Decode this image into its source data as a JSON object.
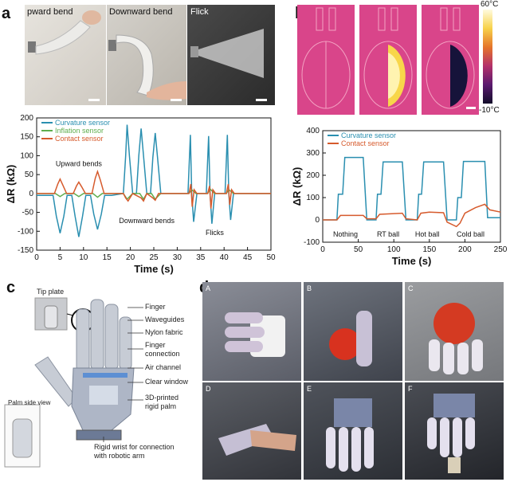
{
  "panel_a": {
    "letter": "a",
    "photos": [
      {
        "label": "Upward bend",
        "shown": "pward bend"
      },
      {
        "label": "Downward bend",
        "shown": "Downward bend"
      },
      {
        "label": "Flick",
        "shown": "Flick"
      }
    ]
  },
  "panel_b": {
    "letter": "b",
    "colorbar_max": "60°C",
    "colorbar_min": "-10°C"
  },
  "panel_c": {
    "letter": "c",
    "labels": {
      "tip_plate": "Tip plate",
      "finger": "Finger",
      "waveguides": "Waveguides",
      "nylon_fabric": "Nylon fabric",
      "finger_connection": "Finger\nconnection",
      "air_channel": "Air channel",
      "clear_window": "Clear window",
      "palm": "3D-printed\nrigid palm",
      "palm_side_view": "Palm side view",
      "wrist": "Rigid wrist for connection\nwith robotic arm"
    }
  },
  "panel_d": {
    "letter": "d",
    "tiles": [
      "A",
      "B",
      "C",
      "D",
      "E",
      "F"
    ]
  },
  "chart_data": [
    {
      "type": "line",
      "panel": "a",
      "xlabel": "Time (s)",
      "ylabel": "ΔR (kΩ)",
      "xlim": [
        0,
        50
      ],
      "ylim": [
        -150,
        200
      ],
      "xticks": [
        0,
        5,
        10,
        15,
        20,
        25,
        30,
        35,
        40,
        45,
        50
      ],
      "yticks": [
        -150,
        -100,
        -50,
        0,
        50,
        100,
        150,
        200
      ],
      "legend": "top-left",
      "annotations": [
        "Upward bends",
        "Downward bends",
        "Flicks"
      ],
      "series": [
        {
          "name": "Curvature sensor",
          "color": "#2a8fb0",
          "x": [
            0,
            3.5,
            4.2,
            5,
            5.8,
            6.5,
            7.5,
            8.2,
            9,
            9.8,
            10.5,
            11.5,
            12.2,
            13,
            13.8,
            14.5,
            16,
            18.5,
            19,
            19.3,
            19.8,
            20.5,
            21.3,
            21.8,
            22.3,
            22.8,
            23.5,
            24.3,
            24.8,
            25.3,
            25.8,
            26.5,
            30,
            32.3,
            32.8,
            33.1,
            33.5,
            34.2,
            36.2,
            36.7,
            37,
            37.4,
            38,
            40.2,
            40.7,
            41,
            41.4,
            42,
            45,
            50
          ],
          "y": [
            -5,
            -5,
            -60,
            -105,
            -60,
            -5,
            -5,
            -60,
            -115,
            -60,
            -5,
            -5,
            -55,
            -95,
            -55,
            -5,
            -5,
            0,
            100,
            182,
            100,
            0,
            0,
            100,
            172,
            100,
            0,
            0,
            95,
            160,
            95,
            0,
            0,
            0,
            155,
            0,
            -75,
            0,
            0,
            152,
            0,
            -80,
            0,
            0,
            155,
            0,
            -70,
            0,
            0,
            0
          ]
        },
        {
          "name": "Inflation sensor",
          "color": "#5fae4e",
          "x": [
            0,
            4,
            5,
            6,
            8,
            9,
            10,
            12,
            13,
            14,
            18.5,
            19.3,
            20.5,
            22,
            22.8,
            23.5,
            24.5,
            25.3,
            26.5,
            32.5,
            33.1,
            34,
            36.5,
            37,
            38,
            40.5,
            41,
            42,
            50
          ],
          "y": [
            0,
            0,
            -8,
            0,
            0,
            -8,
            0,
            0,
            -10,
            0,
            0,
            -15,
            0,
            0,
            -15,
            0,
            0,
            -15,
            0,
            0,
            10,
            0,
            0,
            12,
            0,
            0,
            10,
            0,
            0
          ]
        },
        {
          "name": "Contact sensor",
          "color": "#d65a2c",
          "x": [
            0,
            3.8,
            4.5,
            5,
            5.6,
            6.4,
            7.8,
            8.5,
            9,
            9.6,
            10.4,
            11.8,
            12.5,
            13,
            13.6,
            14.4,
            18.5,
            19,
            19.5,
            20.5,
            22.3,
            22.8,
            23.5,
            24.8,
            25.3,
            26,
            32.5,
            32.9,
            33.2,
            33.6,
            34.2,
            36.5,
            36.9,
            37.2,
            37.6,
            38.2,
            40.5,
            40.9,
            41.2,
            41.6,
            42.2,
            50
          ],
          "y": [
            0,
            0,
            25,
            38,
            22,
            0,
            0,
            20,
            30,
            18,
            0,
            0,
            40,
            58,
            35,
            0,
            0,
            -12,
            -20,
            0,
            -12,
            -20,
            0,
            -12,
            -18,
            0,
            0,
            25,
            -35,
            10,
            0,
            0,
            20,
            -40,
            10,
            0,
            0,
            25,
            -30,
            10,
            0,
            0
          ]
        }
      ]
    },
    {
      "type": "line",
      "panel": "b",
      "xlabel": "Time (s)",
      "ylabel": "ΔR (kΩ)",
      "xlim": [
        0,
        250
      ],
      "ylim": [
        -100,
        400
      ],
      "xticks": [
        0,
        50,
        100,
        150,
        200,
        250
      ],
      "yticks": [
        -100,
        0,
        100,
        200,
        300,
        400
      ],
      "legend": "top-left",
      "annotations": [
        "Nothing",
        "RT ball",
        "Hot ball",
        "Cold ball"
      ],
      "series": [
        {
          "name": "Curvature sensor",
          "color": "#2a8fb0",
          "x": [
            0,
            20,
            22,
            28,
            31,
            57,
            62,
            75,
            77,
            82,
            85,
            112,
            117,
            133,
            135,
            139,
            142,
            170,
            175,
            188,
            190,
            195,
            198,
            228,
            232,
            250
          ],
          "y": [
            0,
            0,
            115,
            115,
            280,
            280,
            0,
            0,
            115,
            115,
            260,
            260,
            0,
            0,
            115,
            115,
            260,
            260,
            0,
            0,
            100,
            100,
            262,
            262,
            10,
            10
          ]
        },
        {
          "name": "Contact sensor",
          "color": "#d65a2c",
          "x": [
            0,
            20,
            25,
            57,
            62,
            75,
            80,
            112,
            117,
            133,
            138,
            150,
            170,
            175,
            188,
            193,
            200,
            215,
            228,
            235,
            250
          ],
          "y": [
            0,
            0,
            20,
            20,
            5,
            5,
            25,
            30,
            5,
            0,
            30,
            35,
            32,
            -10,
            -30,
            -15,
            30,
            55,
            70,
            45,
            35
          ]
        }
      ]
    }
  ]
}
